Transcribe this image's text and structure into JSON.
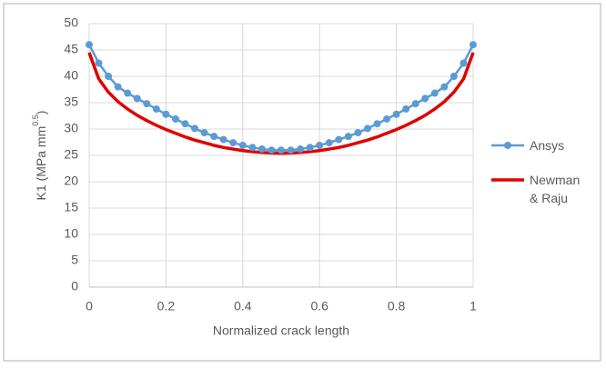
{
  "chart_data": {
    "type": "line",
    "x_label": "Normalized crack length",
    "y_label": [
      "K1 (MPa mm",
      "0.5",
      ")"
    ],
    "x": [
      0,
      0.025,
      0.05,
      0.075,
      0.1,
      0.125,
      0.15,
      0.175,
      0.2,
      0.225,
      0.25,
      0.275,
      0.3,
      0.325,
      0.35,
      0.375,
      0.4,
      0.425,
      0.45,
      0.475,
      0.5,
      0.525,
      0.55,
      0.575,
      0.6,
      0.625,
      0.65,
      0.675,
      0.7,
      0.725,
      0.75,
      0.775,
      0.8,
      0.825,
      0.85,
      0.875,
      0.9,
      0.925,
      0.95,
      0.975,
      1
    ],
    "series": [
      {
        "name": "Ansys",
        "color": "#5b9bd5",
        "markers": true,
        "values": [
          46,
          42.5,
          40,
          38,
          36.8,
          35.8,
          34.8,
          33.8,
          32.8,
          31.9,
          31,
          30.1,
          29.3,
          28.6,
          28,
          27.4,
          26.9,
          26.5,
          26.2,
          26,
          26,
          26,
          26.2,
          26.5,
          26.9,
          27.4,
          28,
          28.6,
          29.3,
          30.1,
          31,
          31.9,
          32.8,
          33.8,
          34.8,
          35.8,
          36.8,
          38,
          40,
          42.5,
          46
        ]
      },
      {
        "name": "Newman & Raju",
        "color": "#e00000",
        "markers": false,
        "values": [
          44.5,
          39.5,
          37,
          35.2,
          33.8,
          32.6,
          31.6,
          30.7,
          29.9,
          29.2,
          28.5,
          27.9,
          27.4,
          26.9,
          26.5,
          26.2,
          25.9,
          25.7,
          25.55,
          25.45,
          25.4,
          25.45,
          25.55,
          25.7,
          25.9,
          26.2,
          26.5,
          26.9,
          27.4,
          27.9,
          28.5,
          29.2,
          29.9,
          30.7,
          31.6,
          32.6,
          33.8,
          35.2,
          37,
          39.5,
          44.5
        ]
      }
    ],
    "xlim": [
      0,
      1
    ],
    "xticks": [
      0,
      0.2,
      0.4,
      0.6,
      0.8,
      1
    ],
    "ylim": [
      0,
      50
    ],
    "yticks": [
      0,
      5,
      10,
      15,
      20,
      25,
      30,
      35,
      40,
      45,
      50
    ],
    "grid": true,
    "legend": "right"
  }
}
